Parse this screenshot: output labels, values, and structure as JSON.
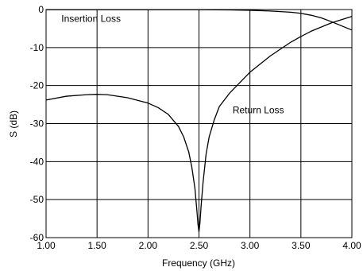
{
  "chart_data": {
    "type": "line",
    "title": "",
    "xlabel": "Frequency (GHz)",
    "ylabel": "S (dB)",
    "xlim": [
      1.0,
      4.0
    ],
    "ylim": [
      -60,
      0
    ],
    "grid": true,
    "x_ticks": [
      "1.00",
      "1.50",
      "2.00",
      "2.50",
      "3.00",
      "3.50",
      "4.00"
    ],
    "x_tick_values": [
      1.0,
      1.5,
      2.0,
      2.5,
      3.0,
      3.5,
      4.0
    ],
    "y_ticks": [
      "0",
      "-10",
      "-20",
      "-30",
      "-40",
      "-50",
      "-60"
    ],
    "y_tick_values": [
      0,
      -10,
      -20,
      -30,
      -40,
      -50,
      -60
    ],
    "series": [
      {
        "name": "Insertion Loss",
        "color": "#000000",
        "x": [
          1.0,
          1.5,
          2.0,
          2.5,
          2.8,
          3.0,
          3.2,
          3.4,
          3.5,
          3.6,
          3.7,
          3.8,
          3.9,
          4.0
        ],
        "y": [
          -0.05,
          -0.05,
          -0.05,
          -0.05,
          -0.1,
          -0.2,
          -0.4,
          -0.7,
          -1.0,
          -1.5,
          -2.2,
          -3.2,
          -4.3,
          -5.4
        ]
      },
      {
        "name": "Return Loss",
        "color": "#000000",
        "x": [
          1.0,
          1.2,
          1.4,
          1.5,
          1.6,
          1.8,
          2.0,
          2.1,
          2.2,
          2.3,
          2.35,
          2.4,
          2.43,
          2.46,
          2.48,
          2.49,
          2.5,
          2.51,
          2.52,
          2.54,
          2.57,
          2.6,
          2.65,
          2.7,
          2.8,
          3.0,
          3.2,
          3.4,
          3.5,
          3.6,
          3.8,
          4.0
        ],
        "y": [
          -23.8,
          -22.8,
          -22.4,
          -22.3,
          -22.4,
          -23.2,
          -24.6,
          -25.8,
          -27.6,
          -30.8,
          -33.5,
          -37.5,
          -41.5,
          -47.0,
          -53.0,
          -56.5,
          -58.5,
          -56.0,
          -52.0,
          -45.5,
          -38.0,
          -33.5,
          -29.0,
          -25.5,
          -22.0,
          -16.5,
          -12.2,
          -8.6,
          -7.1,
          -5.7,
          -3.5,
          -1.8
        ]
      }
    ],
    "annotations": [
      {
        "text": "Insertion Loss",
        "x": 1.15,
        "y": -3.2
      },
      {
        "text": "Return Loss",
        "x": 2.83,
        "y": -27.3
      }
    ]
  }
}
